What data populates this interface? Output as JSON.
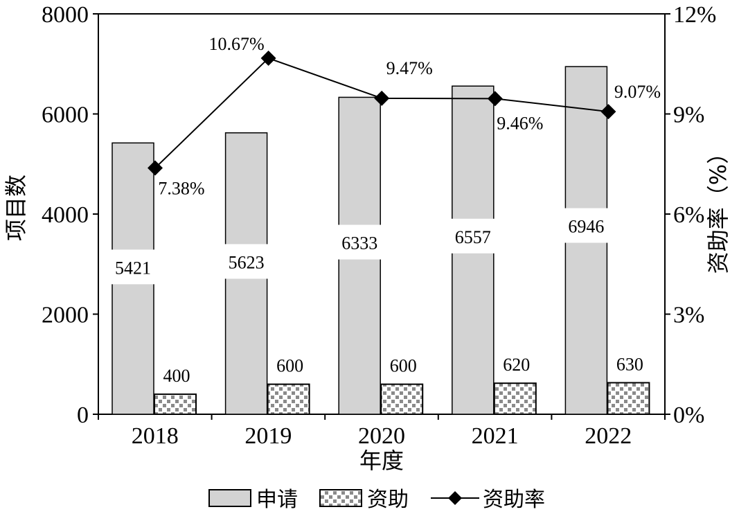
{
  "chart_data": {
    "type": "bar",
    "categories": [
      "2018",
      "2019",
      "2020",
      "2021",
      "2022"
    ],
    "xlabel": "年度",
    "ylabel": "项目数",
    "y2label": "资助率（%）",
    "ylim": [
      0,
      8000
    ],
    "y2lim": [
      0,
      12
    ],
    "yticks": [
      "0",
      "2000",
      "4000",
      "6000",
      "8000"
    ],
    "y2ticks": [
      "0%",
      "3%",
      "6%",
      "9%",
      "12%"
    ],
    "series": [
      {
        "name": "申请",
        "kind": "bar",
        "axis": "left",
        "fill": "#d3d3d3",
        "values": [
          5421,
          5623,
          6333,
          6557,
          6946
        ],
        "labels": [
          "5421",
          "5623",
          "6333",
          "6557",
          "6946"
        ]
      },
      {
        "name": "资助",
        "kind": "bar",
        "axis": "left",
        "fill": "#ffffff",
        "pattern_color": "#8a8a8a",
        "values": [
          400,
          600,
          600,
          620,
          630
        ],
        "labels": [
          "400",
          "600",
          "600",
          "620",
          "630"
        ]
      },
      {
        "name": "资助率",
        "kind": "line",
        "axis": "right",
        "marker": "diamond",
        "values": [
          7.38,
          10.67,
          9.47,
          9.46,
          9.07
        ],
        "labels": [
          "7.38%",
          "10.67%",
          "9.47%",
          "9.46%",
          "9.07%"
        ]
      }
    ],
    "legend": {
      "position": "bottom"
    },
    "grid": false
  }
}
